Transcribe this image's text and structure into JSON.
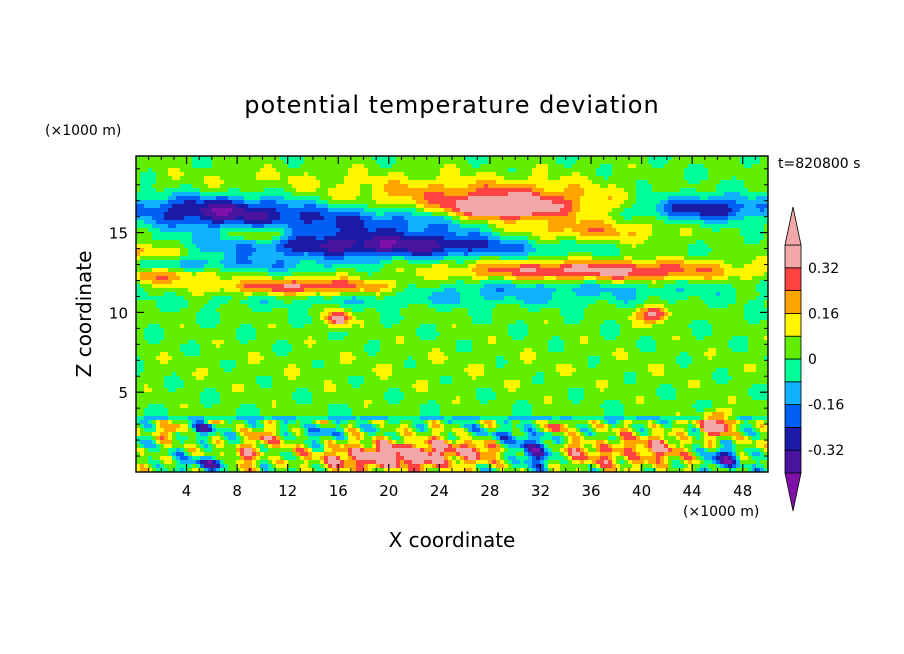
{
  "chart_data": {
    "type": "heatmap",
    "title": "potential temperature deviation",
    "xlabel": "X coordinate",
    "ylabel": "Z coordinate",
    "x_unit": "(×1000 m)",
    "y_unit": "(×1000 m)",
    "time_label": "t=820800 s",
    "xlim": [
      0,
      50
    ],
    "ylim": [
      0,
      19.8
    ],
    "x_ticks": [
      4,
      8,
      12,
      16,
      20,
      24,
      28,
      32,
      36,
      40,
      44,
      48
    ],
    "y_ticks": [
      5,
      10,
      15
    ],
    "colorbar": {
      "levels": [
        -0.4,
        -0.32,
        -0.24,
        -0.16,
        -0.08,
        0,
        0.08,
        0.16,
        0.24,
        0.32,
        0.4
      ],
      "tick_labels": [
        "0.32",
        "0.16",
        "0",
        "-0.16",
        "-0.32"
      ],
      "tick_values": [
        0.32,
        0.16,
        0,
        -0.16,
        -0.32
      ],
      "colors": [
        "#7f11aa",
        "#4a14a0",
        "#1b1ba8",
        "#005ff5",
        "#0fb2ff",
        "#00ff99",
        "#62ee00",
        "#fff500",
        "#ffa500",
        "#ff4242",
        "#f2a8a8",
        "#f2a8a8"
      ],
      "extend": "both"
    },
    "features": [
      {
        "x": 19,
        "z": 0.9,
        "w": 7,
        "h": 1.2,
        "v": 0.33
      },
      {
        "x": 25,
        "z": 1.3,
        "w": 8,
        "h": 1.4,
        "v": 0.25
      },
      {
        "x": 35,
        "z": 1.2,
        "w": 6,
        "h": 1.4,
        "v": 0.2
      },
      {
        "x": 41,
        "z": 1.4,
        "w": 4,
        "h": 1.6,
        "v": 0.22
      },
      {
        "x": 8.5,
        "z": 1.0,
        "w": 2.5,
        "h": 1.0,
        "v": 0.24
      },
      {
        "x": 10.5,
        "z": 2.2,
        "w": 2.5,
        "h": 0.8,
        "v": 0.18
      },
      {
        "x": 2.8,
        "z": 2.7,
        "w": 1.3,
        "h": 0.7,
        "v": 0.22
      },
      {
        "x": 46,
        "z": 3.0,
        "w": 2.0,
        "h": 1.0,
        "v": 0.42
      },
      {
        "x": 33.3,
        "z": 2.8,
        "w": 1.0,
        "h": 0.6,
        "v": 0.4
      },
      {
        "x": 31.5,
        "z": 1.3,
        "w": 3.0,
        "h": 1.6,
        "v": -0.42
      },
      {
        "x": 6,
        "z": 0.6,
        "w": 2.5,
        "h": 0.6,
        "v": -0.34
      },
      {
        "x": 46.5,
        "z": 0.8,
        "w": 2.0,
        "h": 0.9,
        "v": -0.3
      },
      {
        "x": 5.5,
        "z": 2.7,
        "w": 1.5,
        "h": 0.5,
        "v": -0.3
      },
      {
        "x": 14.5,
        "z": 2.5,
        "w": 3.0,
        "h": 0.6,
        "v": -0.16
      },
      {
        "x": 28,
        "z": 2.3,
        "w": 4.0,
        "h": 0.7,
        "v": -0.14
      },
      {
        "x": 16,
        "z": 9.6,
        "w": 1.3,
        "h": 0.7,
        "v": 0.42
      },
      {
        "x": 41,
        "z": 9.9,
        "w": 1.8,
        "h": 0.8,
        "v": 0.36
      },
      {
        "x": 14,
        "z": 11.6,
        "w": 13,
        "h": 0.8,
        "v": 0.42
      },
      {
        "x": 36,
        "z": 12.6,
        "w": 17,
        "h": 1.0,
        "v": 0.35
      },
      {
        "x": 35,
        "z": 15.0,
        "w": 10,
        "h": 1.2,
        "v": 0.22
      },
      {
        "x": 20,
        "z": 14.2,
        "w": 20,
        "h": 1.2,
        "v": -0.38
      },
      {
        "x": 6,
        "z": 16.4,
        "w": 10,
        "h": 1.4,
        "v": -0.34
      },
      {
        "x": 45,
        "z": 16.5,
        "w": 8,
        "h": 1.2,
        "v": -0.34
      },
      {
        "x": 18,
        "z": 15.8,
        "w": 16,
        "h": 1.5,
        "v": -0.26
      },
      {
        "x": 10,
        "z": 14.9,
        "w": 3.5,
        "h": 0.8,
        "v": 0.25
      },
      {
        "x": 28.5,
        "z": 17.1,
        "w": 18,
        "h": 1.8,
        "v": 0.26
      },
      {
        "x": 29,
        "z": 16.5,
        "w": 6,
        "h": 1.0,
        "v": 0.4
      },
      {
        "x": 0.8,
        "z": 13.8,
        "w": 4.0,
        "h": 0.8,
        "v": 0.22
      },
      {
        "x": 2.0,
        "z": 12.3,
        "w": 6.0,
        "h": 0.7,
        "v": 0.2
      },
      {
        "x": 25,
        "z": 11.5,
        "w": 30,
        "h": 1.0,
        "v": -0.18
      },
      {
        "x": 22,
        "z": 10.7,
        "w": 28,
        "h": 0.6,
        "v": -0.06
      },
      {
        "x": 8,
        "z": 13.0,
        "w": 14,
        "h": 0.7,
        "v": -0.14
      },
      {
        "x": 10,
        "z": 18.3,
        "w": 16,
        "h": 1.0,
        "v": 0.05
      },
      {
        "x": 40,
        "z": 17.6,
        "w": 10,
        "h": 1.4,
        "v": -0.05
      },
      {
        "x": 25,
        "z": 6.5,
        "w": 40,
        "h": 2.5,
        "v": 0.03
      }
    ]
  }
}
